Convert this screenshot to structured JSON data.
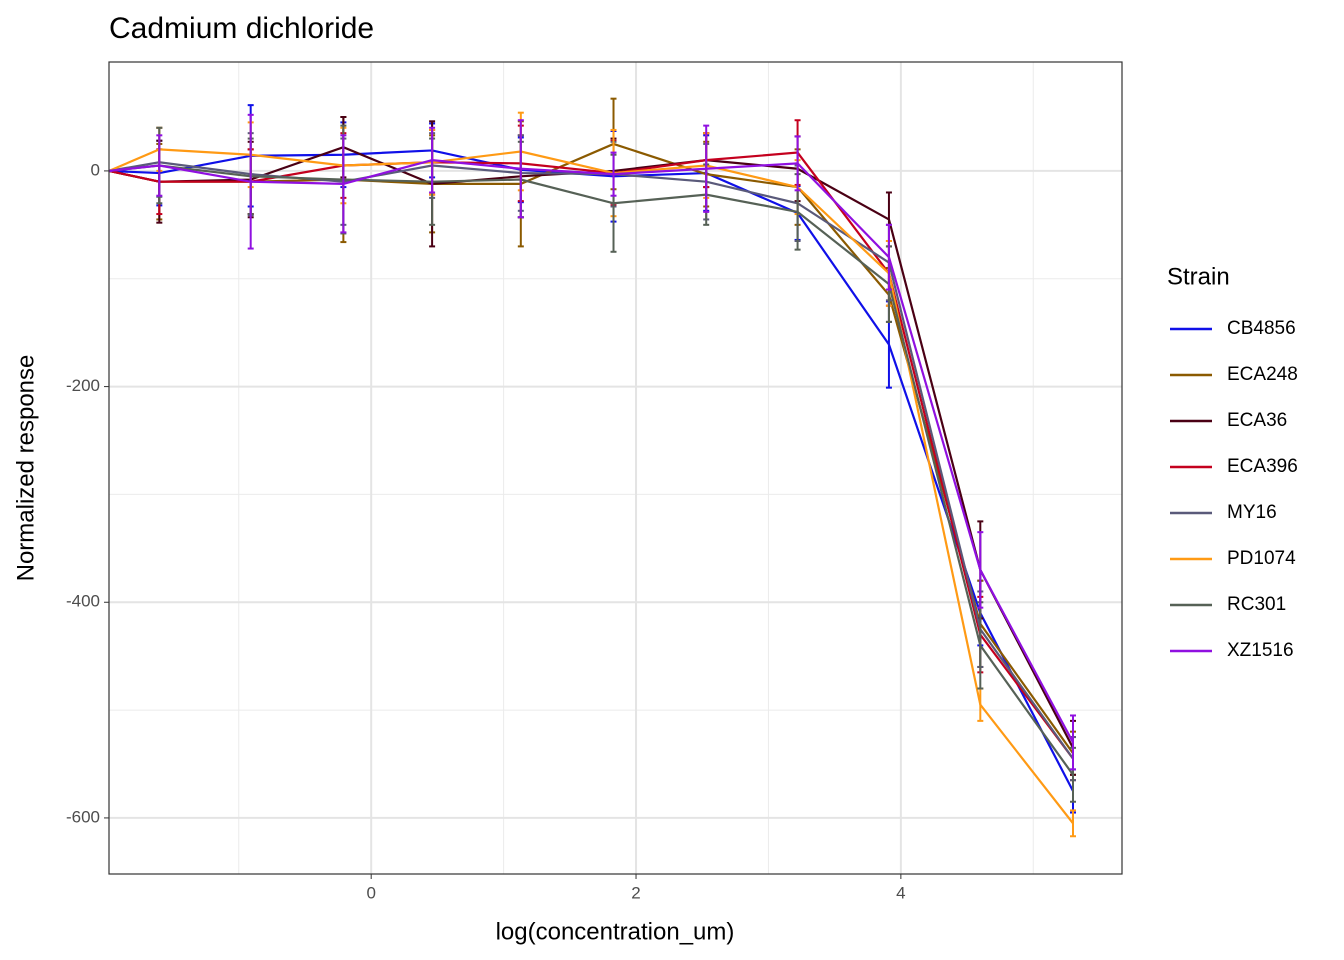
{
  "chart_data": {
    "type": "line",
    "title": "Cadmium dichloride",
    "x_label": "log(concentration_um)",
    "y_label": "Normalized response",
    "legend_title": "Strain",
    "legend_position": "right",
    "grid": true,
    "xlim": [
      -1.98,
      5.67
    ],
    "ylim": [
      -652,
      101
    ],
    "xticks": [
      0,
      2,
      4
    ],
    "yticks": [
      -600,
      -400,
      -200,
      0
    ],
    "xminorticks": [
      -1,
      1,
      3,
      5
    ],
    "yminorticks": [
      -500,
      -300,
      -100
    ],
    "x": [
      -1.98,
      -1.6,
      -0.91,
      -0.21,
      0.46,
      1.13,
      1.83,
      2.53,
      3.22,
      3.91,
      4.6,
      5.3
    ],
    "series": [
      {
        "name": "CB4856",
        "color": "#1010e8",
        "values": [
          0,
          -2,
          14,
          15,
          19,
          1,
          -5,
          -2,
          -39,
          -161,
          -410,
          -575
        ],
        "errors": [
          0,
          30,
          47,
          30,
          25,
          30,
          42,
          35,
          25,
          40,
          30,
          20
        ]
      },
      {
        "name": "ECA248",
        "color": "#8b5a00",
        "values": [
          0,
          -10,
          -10,
          -8,
          -12,
          -12,
          25,
          -3,
          -15,
          -115,
          -420,
          -540
        ],
        "errors": [
          0,
          35,
          30,
          58,
          45,
          58,
          42,
          30,
          35,
          25,
          40,
          20
        ]
      },
      {
        "name": "ECA36",
        "color": "#4a0014",
        "values": [
          0,
          -10,
          -8,
          22,
          -12,
          -5,
          0,
          10,
          2,
          -45,
          -370,
          -535
        ],
        "errors": [
          0,
          38,
          35,
          28,
          58,
          38,
          30,
          25,
          30,
          25,
          45,
          25
        ]
      },
      {
        "name": "ECA396",
        "color": "#c4001e",
        "values": [
          0,
          -10,
          -10,
          5,
          8,
          7,
          -2,
          10,
          17,
          -95,
          -430,
          -545
        ],
        "errors": [
          0,
          30,
          30,
          30,
          30,
          35,
          30,
          25,
          30,
          30,
          35,
          20
        ]
      },
      {
        "name": "MY16",
        "color": "#5a5a7a",
        "values": [
          0,
          8,
          -3,
          -10,
          5,
          -2,
          -3,
          -10,
          -30,
          -85,
          -425,
          -545
        ],
        "errors": [
          0,
          32,
          38,
          40,
          30,
          35,
          30,
          35,
          35,
          35,
          35,
          20
        ]
      },
      {
        "name": "PD1074",
        "color": "#ff9a14",
        "values": [
          0,
          20,
          15,
          5,
          8,
          18,
          -2,
          5,
          -15,
          -95,
          -495,
          -605
        ],
        "errors": [
          0,
          20,
          30,
          35,
          30,
          36,
          40,
          30,
          25,
          30,
          15,
          12
        ]
      },
      {
        "name": "RC301",
        "color": "#566156",
        "values": [
          0,
          5,
          -5,
          -8,
          -10,
          -8,
          -30,
          -22,
          -38,
          -105,
          -440,
          -560
        ],
        "errors": [
          0,
          35,
          35,
          50,
          40,
          35,
          45,
          28,
          35,
          35,
          40,
          25
        ]
      },
      {
        "name": "XZ1516",
        "color": "#9010e0",
        "values": [
          0,
          5,
          -10,
          -12,
          10,
          2,
          -3,
          2,
          7,
          -80,
          -370,
          -530
        ],
        "errors": [
          0,
          28,
          62,
          45,
          30,
          45,
          20,
          40,
          25,
          30,
          35,
          25
        ]
      }
    ]
  }
}
